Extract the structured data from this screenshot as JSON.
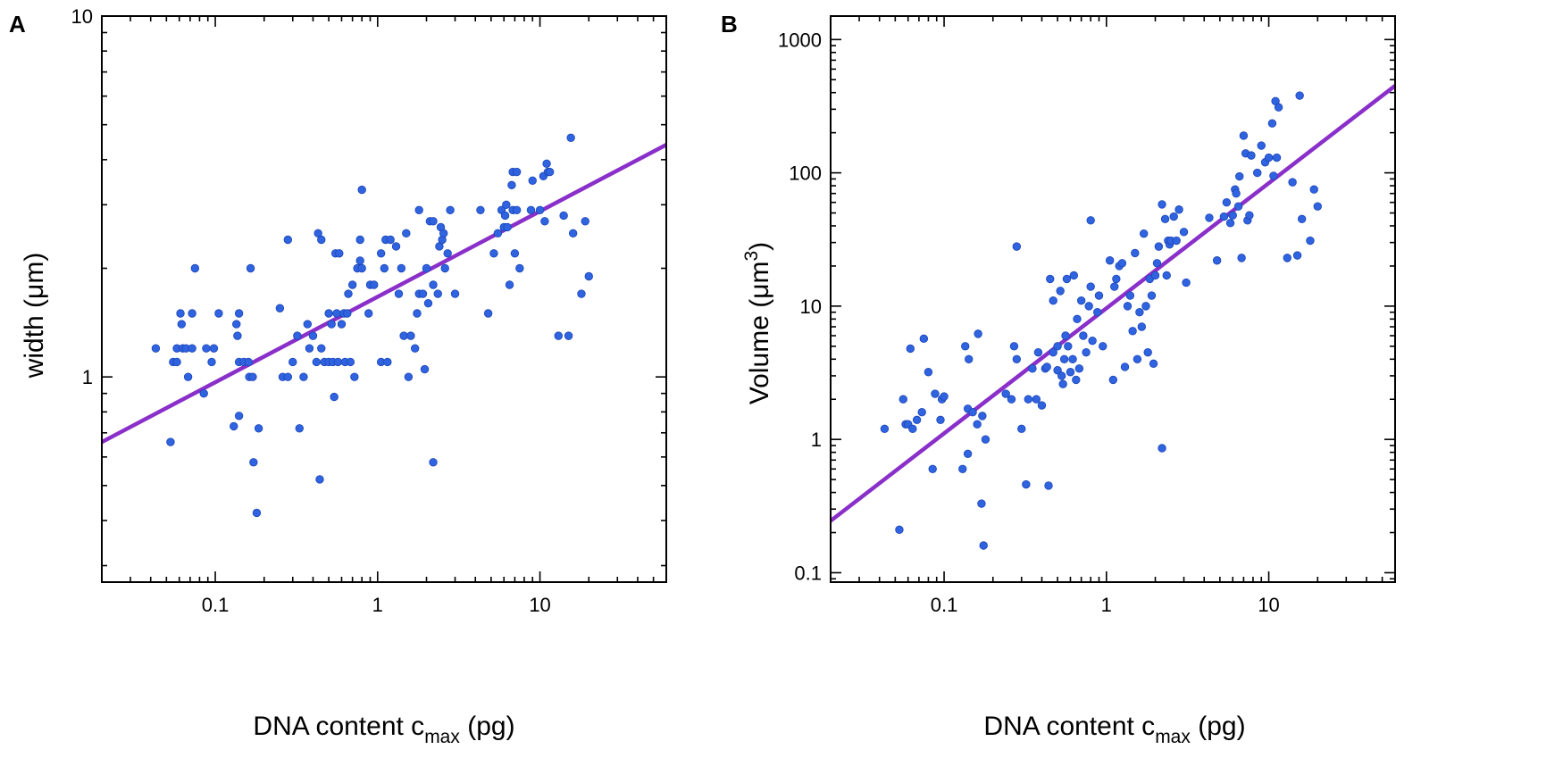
{
  "colors": {
    "point": "#2f63e0",
    "point_edge": "#1d46b5",
    "fit": "#8a2fc9",
    "axis": "#000000"
  },
  "chart_data": [
    {
      "type": "scatter",
      "panel": "A",
      "xscale": "log",
      "yscale": "log",
      "xlim": [
        0.02,
        60
      ],
      "ylim": [
        0.27,
        10
      ],
      "xticks": [
        0.1,
        1,
        10
      ],
      "xtick_labels": [
        "0.1",
        "1",
        "10"
      ],
      "yticks": [
        1,
        10
      ],
      "ytick_labels": [
        "1",
        "10"
      ],
      "xlabel": {
        "main": "DNA content c",
        "sub": "max",
        "tail": " (pg)"
      },
      "ylabel": {
        "main": "width (μm)"
      },
      "fit_line": {
        "x": [
          0.02,
          60
        ],
        "y": [
          0.66,
          4.4
        ]
      },
      "points": [
        [
          0.043,
          1.2
        ],
        [
          0.053,
          0.66
        ],
        [
          0.055,
          1.1
        ],
        [
          0.058,
          1.1
        ],
        [
          0.058,
          1.2
        ],
        [
          0.061,
          1.5
        ],
        [
          0.062,
          1.4
        ],
        [
          0.063,
          1.2
        ],
        [
          0.066,
          1.2
        ],
        [
          0.068,
          1.0
        ],
        [
          0.072,
          1.5
        ],
        [
          0.072,
          1.2
        ],
        [
          0.075,
          2.0
        ],
        [
          0.085,
          0.9
        ],
        [
          0.088,
          1.2
        ],
        [
          0.095,
          1.1
        ],
        [
          0.098,
          1.2
        ],
        [
          0.105,
          1.5
        ],
        [
          0.13,
          0.73
        ],
        [
          0.135,
          1.4
        ],
        [
          0.137,
          1.3
        ],
        [
          0.14,
          1.5
        ],
        [
          0.14,
          0.78
        ],
        [
          0.14,
          1.1
        ],
        [
          0.15,
          1.1
        ],
        [
          0.16,
          1.1
        ],
        [
          0.162,
          1.0
        ],
        [
          0.165,
          2.0
        ],
        [
          0.17,
          1.0
        ],
        [
          0.172,
          0.58
        ],
        [
          0.18,
          0.42
        ],
        [
          0.185,
          0.72
        ],
        [
          0.25,
          1.55
        ],
        [
          0.26,
          1.0
        ],
        [
          0.28,
          2.4
        ],
        [
          0.28,
          1.0
        ],
        [
          0.3,
          1.1
        ],
        [
          0.32,
          1.3
        ],
        [
          0.33,
          0.72
        ],
        [
          0.35,
          1.0
        ],
        [
          0.37,
          1.4
        ],
        [
          0.38,
          1.2
        ],
        [
          0.4,
          1.3
        ],
        [
          0.42,
          1.1
        ],
        [
          0.43,
          2.5
        ],
        [
          0.44,
          0.52
        ],
        [
          0.45,
          2.4
        ],
        [
          0.45,
          1.2
        ],
        [
          0.47,
          1.1
        ],
        [
          0.5,
          1.5
        ],
        [
          0.5,
          1.1
        ],
        [
          0.52,
          1.4
        ],
        [
          0.53,
          1.1
        ],
        [
          0.54,
          0.88
        ],
        [
          0.55,
          2.2
        ],
        [
          0.56,
          1.5
        ],
        [
          0.57,
          1.1
        ],
        [
          0.58,
          2.2
        ],
        [
          0.6,
          1.4
        ],
        [
          0.62,
          1.5
        ],
        [
          0.63,
          1.1
        ],
        [
          0.65,
          1.5
        ],
        [
          0.66,
          1.7
        ],
        [
          0.68,
          1.1
        ],
        [
          0.7,
          1.8
        ],
        [
          0.72,
          1.0
        ],
        [
          0.75,
          2.0
        ],
        [
          0.78,
          2.4
        ],
        [
          0.78,
          2.1
        ],
        [
          0.8,
          2.0
        ],
        [
          0.8,
          3.3
        ],
        [
          0.88,
          1.5
        ],
        [
          0.9,
          1.8
        ],
        [
          0.95,
          1.8
        ],
        [
          1.05,
          1.1
        ],
        [
          1.05,
          2.2
        ],
        [
          1.1,
          2.0
        ],
        [
          1.12,
          2.4
        ],
        [
          1.15,
          1.1
        ],
        [
          1.2,
          2.4
        ],
        [
          1.3,
          2.3
        ],
        [
          1.35,
          1.7
        ],
        [
          1.4,
          2.0
        ],
        [
          1.45,
          1.3
        ],
        [
          1.5,
          2.5
        ],
        [
          1.55,
          1.0
        ],
        [
          1.6,
          1.3
        ],
        [
          1.7,
          1.2
        ],
        [
          1.75,
          1.5
        ],
        [
          1.8,
          2.9
        ],
        [
          1.8,
          1.7
        ],
        [
          1.9,
          1.7
        ],
        [
          1.95,
          1.05
        ],
        [
          2.0,
          2.0
        ],
        [
          2.05,
          1.6
        ],
        [
          2.1,
          2.7
        ],
        [
          2.2,
          1.8
        ],
        [
          2.2,
          2.7
        ],
        [
          2.2,
          0.58
        ],
        [
          2.35,
          1.7
        ],
        [
          2.4,
          2.3
        ],
        [
          2.45,
          2.6
        ],
        [
          2.5,
          2.4
        ],
        [
          2.55,
          2.5
        ],
        [
          2.6,
          2.0
        ],
        [
          2.7,
          2.2
        ],
        [
          2.8,
          2.9
        ],
        [
          3.0,
          1.7
        ],
        [
          4.3,
          2.9
        ],
        [
          4.8,
          1.5
        ],
        [
          5.2,
          2.2
        ],
        [
          5.5,
          2.5
        ],
        [
          5.8,
          2.9
        ],
        [
          6.0,
          2.6
        ],
        [
          6.1,
          2.8
        ],
        [
          6.2,
          3.0
        ],
        [
          6.3,
          2.6
        ],
        [
          6.5,
          1.8
        ],
        [
          6.7,
          3.4
        ],
        [
          6.8,
          3.7
        ],
        [
          6.8,
          2.9
        ],
        [
          7.0,
          2.2
        ],
        [
          7.2,
          3.7
        ],
        [
          7.2,
          2.9
        ],
        [
          7.5,
          2.0
        ],
        [
          8.8,
          2.9
        ],
        [
          9.0,
          3.5
        ],
        [
          10.0,
          2.9
        ],
        [
          10.5,
          3.6
        ],
        [
          10.7,
          2.7
        ],
        [
          11.0,
          3.9
        ],
        [
          11.2,
          3.7
        ],
        [
          11.5,
          3.7
        ],
        [
          13.0,
          1.3
        ],
        [
          14.0,
          2.8
        ],
        [
          15.0,
          1.3
        ],
        [
          15.5,
          4.6
        ],
        [
          16.0,
          2.5
        ],
        [
          18.0,
          1.7
        ],
        [
          19.0,
          2.7
        ],
        [
          20.0,
          1.9
        ]
      ]
    },
    {
      "type": "scatter",
      "panel": "B",
      "xscale": "log",
      "yscale": "log",
      "xlim": [
        0.02,
        60
      ],
      "ylim": [
        0.085,
        1500
      ],
      "xticks": [
        0.1,
        1,
        10
      ],
      "xtick_labels": [
        "0.1",
        "1",
        "10"
      ],
      "yticks": [
        0.1,
        1,
        10,
        100,
        1000
      ],
      "ytick_labels": [
        "0.1",
        "1",
        "10",
        "100",
        "1000"
      ],
      "xlabel": {
        "main": "DNA content c",
        "sub": "max",
        "tail": " (pg)"
      },
      "ylabel": {
        "main": "Volume (μm",
        "sup": "3",
        "tail": ")"
      },
      "fit_line": {
        "x": [
          0.02,
          60
        ],
        "y": [
          0.245,
          450
        ]
      },
      "points": [
        [
          0.043,
          1.2
        ],
        [
          0.053,
          0.21
        ],
        [
          0.056,
          2.0
        ],
        [
          0.058,
          1.3
        ],
        [
          0.06,
          1.3
        ],
        [
          0.062,
          4.8
        ],
        [
          0.064,
          1.2
        ],
        [
          0.068,
          1.4
        ],
        [
          0.073,
          1.6
        ],
        [
          0.075,
          5.7
        ],
        [
          0.08,
          3.2
        ],
        [
          0.085,
          0.6
        ],
        [
          0.088,
          2.2
        ],
        [
          0.095,
          1.4
        ],
        [
          0.097,
          2.0
        ],
        [
          0.1,
          2.1
        ],
        [
          0.13,
          0.6
        ],
        [
          0.135,
          5.0
        ],
        [
          0.14,
          1.7
        ],
        [
          0.14,
          0.78
        ],
        [
          0.142,
          4.0
        ],
        [
          0.15,
          1.6
        ],
        [
          0.16,
          1.3
        ],
        [
          0.162,
          6.2
        ],
        [
          0.17,
          0.33
        ],
        [
          0.172,
          1.5
        ],
        [
          0.175,
          0.16
        ],
        [
          0.18,
          1.0
        ],
        [
          0.24,
          2.2
        ],
        [
          0.26,
          2.0
        ],
        [
          0.27,
          5.0
        ],
        [
          0.28,
          4.0
        ],
        [
          0.28,
          28.0
        ],
        [
          0.3,
          1.2
        ],
        [
          0.32,
          0.46
        ],
        [
          0.33,
          2.0
        ],
        [
          0.35,
          3.4
        ],
        [
          0.37,
          2.0
        ],
        [
          0.38,
          4.5
        ],
        [
          0.4,
          1.8
        ],
        [
          0.42,
          3.4
        ],
        [
          0.43,
          3.5
        ],
        [
          0.44,
          0.45
        ],
        [
          0.45,
          16.0
        ],
        [
          0.47,
          11.0
        ],
        [
          0.47,
          4.5
        ],
        [
          0.5,
          3.3
        ],
        [
          0.5,
          5.0
        ],
        [
          0.52,
          13.0
        ],
        [
          0.53,
          3.0
        ],
        [
          0.54,
          2.6
        ],
        [
          0.55,
          4.0
        ],
        [
          0.56,
          6.0
        ],
        [
          0.57,
          16.0
        ],
        [
          0.58,
          5.0
        ],
        [
          0.6,
          3.2
        ],
        [
          0.62,
          4.0
        ],
        [
          0.63,
          17.0
        ],
        [
          0.65,
          2.8
        ],
        [
          0.66,
          8.0
        ],
        [
          0.68,
          3.4
        ],
        [
          0.7,
          11.0
        ],
        [
          0.72,
          6.0
        ],
        [
          0.75,
          4.5
        ],
        [
          0.78,
          10.0
        ],
        [
          0.8,
          14.0
        ],
        [
          0.82,
          5.5
        ],
        [
          0.8,
          44.0
        ],
        [
          0.88,
          9.0
        ],
        [
          0.9,
          12.0
        ],
        [
          0.95,
          5.0
        ],
        [
          1.05,
          22.0
        ],
        [
          1.1,
          2.8
        ],
        [
          1.12,
          14.0
        ],
        [
          1.15,
          16.0
        ],
        [
          1.2,
          20.0
        ],
        [
          1.25,
          21.0
        ],
        [
          1.3,
          3.5
        ],
        [
          1.35,
          10.0
        ],
        [
          1.4,
          12.0
        ],
        [
          1.45,
          6.5
        ],
        [
          1.5,
          25.0
        ],
        [
          1.55,
          4.0
        ],
        [
          1.6,
          9.0
        ],
        [
          1.65,
          7.0
        ],
        [
          1.7,
          35.0
        ],
        [
          1.75,
          10.0
        ],
        [
          1.8,
          4.5
        ],
        [
          1.85,
          16.0
        ],
        [
          1.9,
          12.0
        ],
        [
          1.95,
          3.7
        ],
        [
          2.0,
          17.0
        ],
        [
          2.05,
          21.0
        ],
        [
          2.1,
          28.0
        ],
        [
          2.2,
          0.86
        ],
        [
          2.2,
          58.0
        ],
        [
          2.3,
          45.0
        ],
        [
          2.35,
          17.0
        ],
        [
          2.4,
          31.0
        ],
        [
          2.45,
          29.0
        ],
        [
          2.5,
          31.0
        ],
        [
          2.6,
          47.0
        ],
        [
          2.7,
          31.0
        ],
        [
          2.8,
          53.0
        ],
        [
          3.0,
          36.0
        ],
        [
          3.1,
          15.0
        ],
        [
          4.3,
          46.0
        ],
        [
          4.8,
          22.0
        ],
        [
          5.3,
          47.0
        ],
        [
          5.5,
          60.0
        ],
        [
          5.8,
          42.0
        ],
        [
          6.0,
          48.0
        ],
        [
          6.2,
          75.0
        ],
        [
          6.3,
          70.0
        ],
        [
          6.5,
          56.0
        ],
        [
          6.6,
          94.0
        ],
        [
          6.8,
          23.0
        ],
        [
          7.0,
          190.0
        ],
        [
          7.2,
          140.0
        ],
        [
          7.4,
          44.0
        ],
        [
          7.6,
          48.0
        ],
        [
          7.8,
          135.0
        ],
        [
          8.5,
          100.0
        ],
        [
          9.0,
          160.0
        ],
        [
          9.5,
          120.0
        ],
        [
          10.0,
          130.0
        ],
        [
          10.5,
          235.0
        ],
        [
          10.7,
          95.0
        ],
        [
          11.0,
          345.0
        ],
        [
          11.2,
          130.0
        ],
        [
          11.5,
          310.0
        ],
        [
          13.0,
          23.0
        ],
        [
          14.0,
          85.0
        ],
        [
          15.0,
          24.0
        ],
        [
          15.5,
          380.0
        ],
        [
          16.0,
          45.0
        ],
        [
          18.0,
          31.0
        ],
        [
          19.0,
          75.0
        ],
        [
          20.0,
          56.0
        ]
      ]
    }
  ]
}
